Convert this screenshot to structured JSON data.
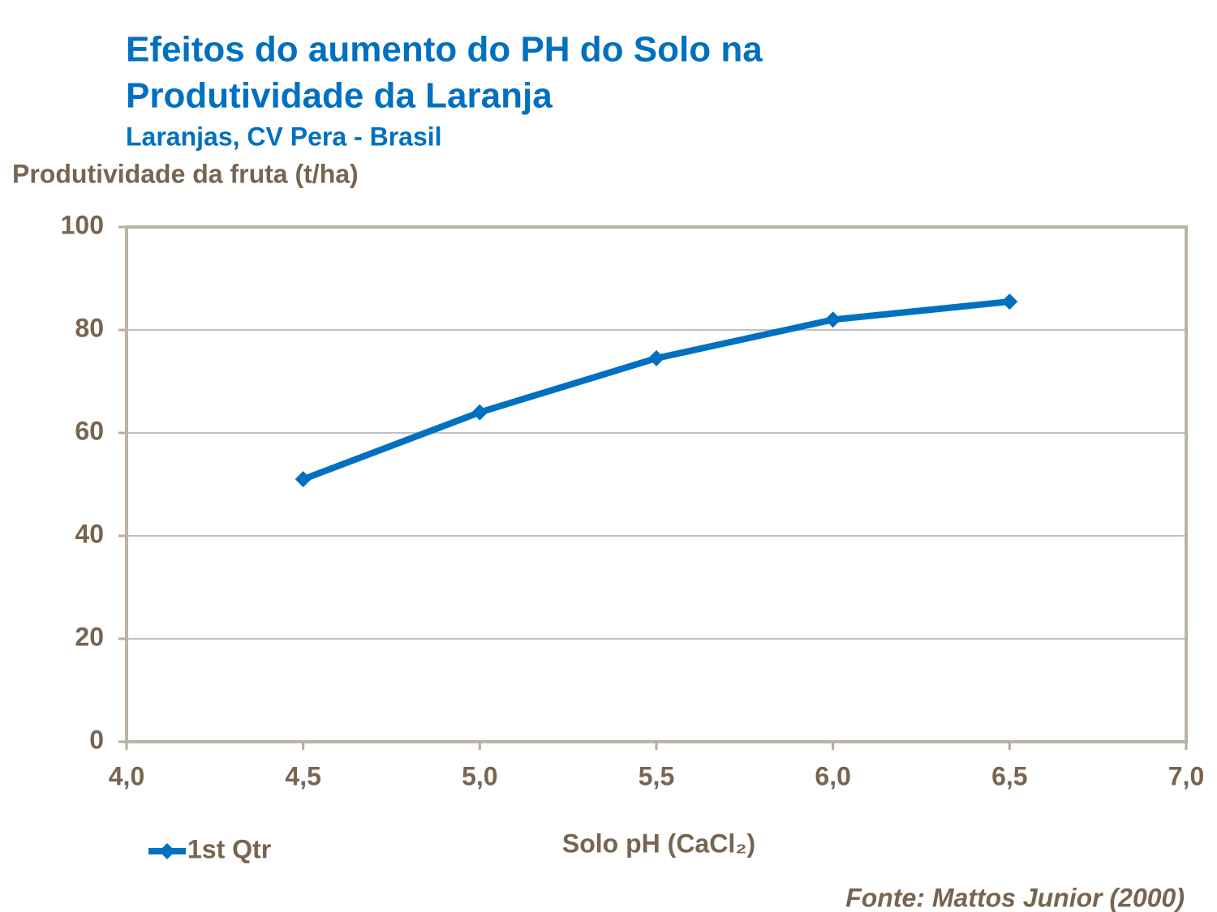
{
  "chart_data": {
    "type": "line",
    "title": [
      "Efeitos do aumento do PH do Solo na",
      "Produtividade da Laranja"
    ],
    "subtitle": "Laranjas, CV Pera - Brasil",
    "ylabel": "Produtividade da fruta (t/ha)",
    "xlabel": "Solo pH (CaCl₂)",
    "source": "Fonte: Mattos Junior (2000)",
    "x": [
      4.5,
      5.0,
      5.5,
      6.0,
      6.5
    ],
    "series": [
      {
        "name": "1st Qtr",
        "color": "#0070c0",
        "values": [
          51,
          64,
          74.5,
          82,
          85.5
        ]
      }
    ],
    "xlim": [
      4,
      7
    ],
    "xticks": [
      {
        "value": 4,
        "label": "4,0"
      },
      {
        "value": 4.5,
        "label": "4,5"
      },
      {
        "value": 5,
        "label": "5,0"
      },
      {
        "value": 5.5,
        "label": "5,5"
      },
      {
        "value": 6,
        "label": "6,0"
      },
      {
        "value": 6.5,
        "label": "6,5"
      },
      {
        "value": 7,
        "label": "7,0"
      }
    ],
    "ylim": [
      0,
      100
    ],
    "yticks": [
      0,
      20,
      40,
      60,
      80,
      100
    ],
    "grid": true,
    "legend": "bottom-left"
  }
}
